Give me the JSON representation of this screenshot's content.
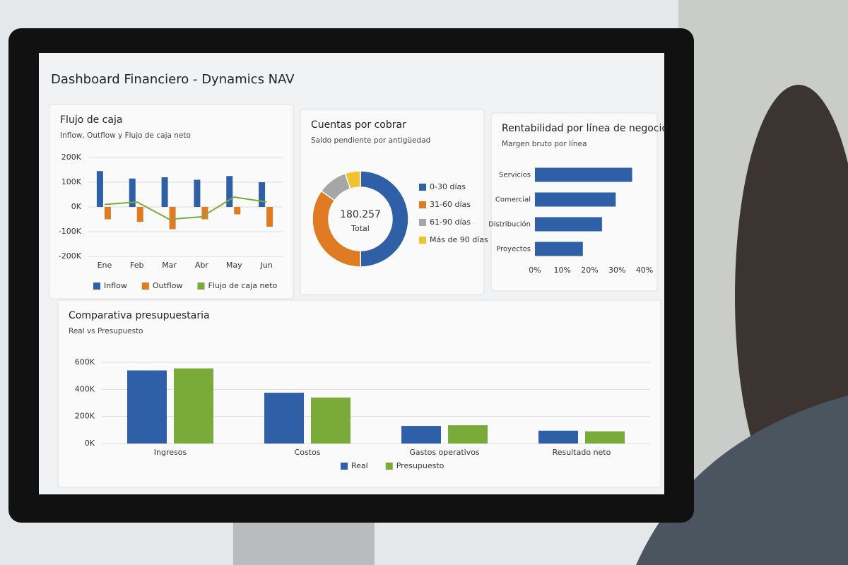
{
  "header": {
    "title": "Dashboard Financiero - Dynamics NAV"
  },
  "chart_data": [
    {
      "type": "bar_line",
      "title": "Flujo de caja",
      "subtitle": "Inflow, Outflow y Flujo de caja neto",
      "categories": [
        "Ene",
        "Feb",
        "Mar",
        "Abr",
        "May",
        "Jun"
      ],
      "series": [
        {
          "name": "Inflow",
          "color": "#2f5fa7",
          "kind": "bar",
          "values": [
            145000,
            115000,
            120000,
            110000,
            125000,
            100000
          ]
        },
        {
          "name": "Outflow",
          "color": "#e07b24",
          "kind": "bar",
          "values": [
            -50000,
            -60000,
            -90000,
            -50000,
            -30000,
            -80000
          ]
        },
        {
          "name": "Flujo de caja neto",
          "color": "#7aab3a",
          "kind": "line",
          "values": [
            10000,
            20000,
            -50000,
            -40000,
            40000,
            20000
          ]
        }
      ],
      "ylim": [
        -200000,
        200000
      ],
      "yticks": [
        {
          "value": -200000,
          "label": "-200K"
        },
        {
          "value": -100000,
          "label": "-100K"
        },
        {
          "value": 0,
          "label": "0K"
        },
        {
          "value": 100000,
          "label": "100K"
        },
        {
          "value": 200000,
          "label": "200K"
        }
      ],
      "grid": true
    },
    {
      "type": "donut",
      "title": "Cuentas por cobrar",
      "subtitle": "Saldo pendiente por antigüedad",
      "categories": [
        "0-30 días",
        "31-60 días",
        "61-90 días",
        "Más de 90 días"
      ],
      "values": [
        90000,
        63000,
        18000,
        9257
      ],
      "colors": [
        "#2f5fa7",
        "#e07b24",
        "#a6a6a6",
        "#f2c12e"
      ],
      "total": {
        "value": 180257,
        "label": "180.257"
      },
      "total_caption": "Total"
    },
    {
      "type": "hbar",
      "title": "Rentabilidad por línea de negocio",
      "subtitle": "Margen bruto por línea",
      "categories": [
        "Servicios",
        "Comercial",
        "Distribución",
        "Proyectos"
      ],
      "values": [
        35.5,
        29.5,
        24.5,
        17.5
      ],
      "color": "#2f5fa7",
      "xlim": [
        0,
        40
      ],
      "xticks": [
        {
          "value": 0,
          "label": "0%"
        },
        {
          "value": 10,
          "label": "10%"
        },
        {
          "value": 20,
          "label": "20%"
        },
        {
          "value": 30,
          "label": "30%"
        },
        {
          "value": 40,
          "label": "40%"
        }
      ]
    },
    {
      "type": "grouped_bar",
      "title": "Comparativa presupuestaria",
      "subtitle": "Real vs Presupuesto",
      "categories": [
        "Ingresos",
        "Costos",
        "Gastos operativos",
        "Resultado neto"
      ],
      "series": [
        {
          "name": "Real",
          "color": "#2f5fa7",
          "values": [
            540000,
            375000,
            130000,
            95000
          ]
        },
        {
          "name": "Presupuesto",
          "color": "#7aab3a",
          "values": [
            555000,
            340000,
            135000,
            90000
          ]
        }
      ],
      "ylim": [
        0,
        600000
      ],
      "yticks": [
        {
          "value": 0,
          "label": "0K"
        },
        {
          "value": 200000,
          "label": "200K"
        },
        {
          "value": 400000,
          "label": "400K"
        },
        {
          "value": 600000,
          "label": "600K"
        }
      ],
      "grid": true
    }
  ]
}
